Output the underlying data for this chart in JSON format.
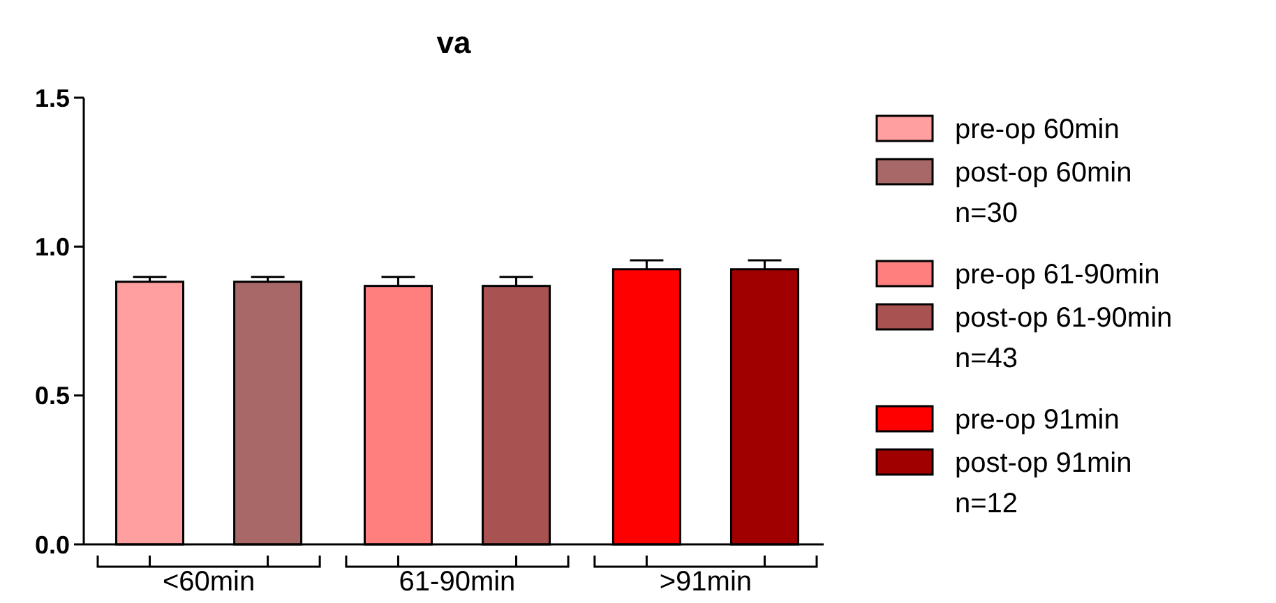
{
  "chart_data": {
    "type": "bar",
    "title": "va",
    "categories": [
      "<60min",
      "61-90min",
      ">91min"
    ],
    "series": [
      {
        "name": "pre-op 60min",
        "color": "#ff9f9f",
        "values": [
          0.882,
          null,
          null
        ],
        "errors": [
          0.016,
          null,
          null
        ]
      },
      {
        "name": "post-op 60min",
        "color": "#a86868",
        "values": [
          0.882,
          null,
          null
        ],
        "errors": [
          0.016,
          null,
          null
        ]
      },
      {
        "name": "pre-op 61-90min",
        "color": "#ff7f7f",
        "values": [
          null,
          0.868,
          null
        ],
        "errors": [
          null,
          0.03,
          null
        ]
      },
      {
        "name": "post-op 61-90min",
        "color": "#a85252",
        "values": [
          null,
          0.868,
          null
        ],
        "errors": [
          null,
          0.03,
          null
        ]
      },
      {
        "name": "pre-op 91min",
        "color": "#ff0000",
        "values": [
          null,
          null,
          0.924
        ],
        "errors": [
          null,
          null,
          0.03
        ]
      },
      {
        "name": "post-op 91min",
        "color": "#a00000",
        "values": [
          null,
          null,
          0.924
        ],
        "errors": [
          null,
          null,
          0.03
        ]
      }
    ],
    "annotations": [
      "n=30",
      "n=43",
      "n=12"
    ],
    "ylim": [
      0,
      1.5
    ],
    "yticks": [
      {
        "value": 0,
        "label": "0.0"
      },
      {
        "value": 0.5,
        "label": "0.5"
      },
      {
        "value": 1,
        "label": "1.0"
      },
      {
        "value": 1.5,
        "label": "1.5"
      }
    ],
    "legend": "right",
    "grid": false
  }
}
